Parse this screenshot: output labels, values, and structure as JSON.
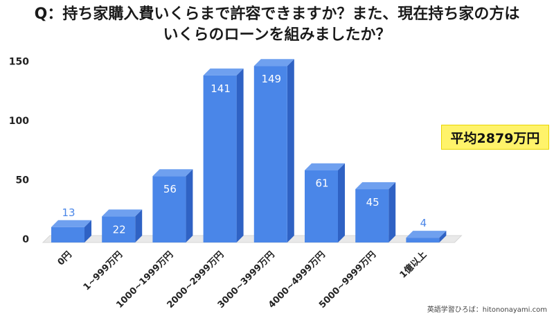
{
  "title": {
    "line1": "Q：持ち家購入費いくらまで許容できますか？また、現在持ち家の方は",
    "line2": "いくらのローンを組みましたか？"
  },
  "average_badge": "平均2879万円",
  "credit": "英語学習ひろば：hitononayami.com",
  "colors": {
    "bar_front": "#4a86e8",
    "bar_top": "#6fa0ef",
    "bar_side": "#2f62c4",
    "badge_bg": "#fff36a"
  },
  "chart_data": {
    "type": "bar",
    "categories": [
      "0円",
      "1~999万円",
      "1000~1999万円",
      "2000~2999万円",
      "3000~3999万円",
      "4000~4999万円",
      "5000~9999万円",
      "1億以上"
    ],
    "values": [
      13,
      22,
      56,
      141,
      149,
      61,
      45,
      4
    ],
    "data_labels": [
      "13",
      "22",
      "56",
      "141",
      "149",
      "61",
      "45",
      "4"
    ],
    "yticks": [
      "0",
      "50",
      "100",
      "150"
    ],
    "ylim": [
      0,
      150
    ],
    "grid": false,
    "legend": "none",
    "style": "3d"
  }
}
